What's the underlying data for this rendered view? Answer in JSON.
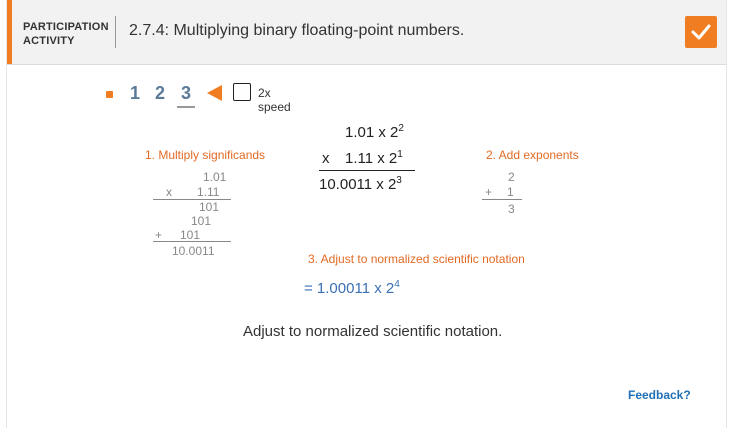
{
  "header": {
    "activity_type_line1": "PARTICIPATION",
    "activity_type_line2": "ACTIVITY",
    "title": "2.7.4: Multiplying binary floating-point numbers.",
    "complete_icon": "checkmark-icon",
    "accent_color": "#f07d21"
  },
  "controls": {
    "steps": [
      "1",
      "2",
      "3"
    ],
    "current_step": "3",
    "play_icon": "play-left-triangle-icon",
    "speed_label": "2x speed",
    "speed_checked": false
  },
  "left_work": {
    "label": "1. Multiply significands",
    "line1": "1.01",
    "line2_op": "x",
    "line2": "1.11",
    "partial1": "101",
    "partial2": "101",
    "partial3_op": "+",
    "partial3": "101",
    "result": "10.0011"
  },
  "center_work": {
    "line1_base": "1.01 x 2",
    "line1_exp": "2",
    "line2_op": "x",
    "line2_base": "1.11 x 2",
    "line2_exp": "1",
    "result_base": "10.0011 x 2",
    "result_exp": "3"
  },
  "right_work": {
    "label": "2. Add exponents",
    "line1": "2",
    "line2_op": "+",
    "line2": "1",
    "result": "3"
  },
  "normalize": {
    "label": "3. Adjust to normalized scientific notation",
    "result_base": "= 1.00011 x 2",
    "result_exp": "4"
  },
  "caption": "Adjust to normalized scientific notation.",
  "feedback": "Feedback?",
  "colors": {
    "orange": "#e06a24",
    "blue": "#3a70b4",
    "step_blue": "#5b7b99",
    "link": "#1f6fb5"
  }
}
